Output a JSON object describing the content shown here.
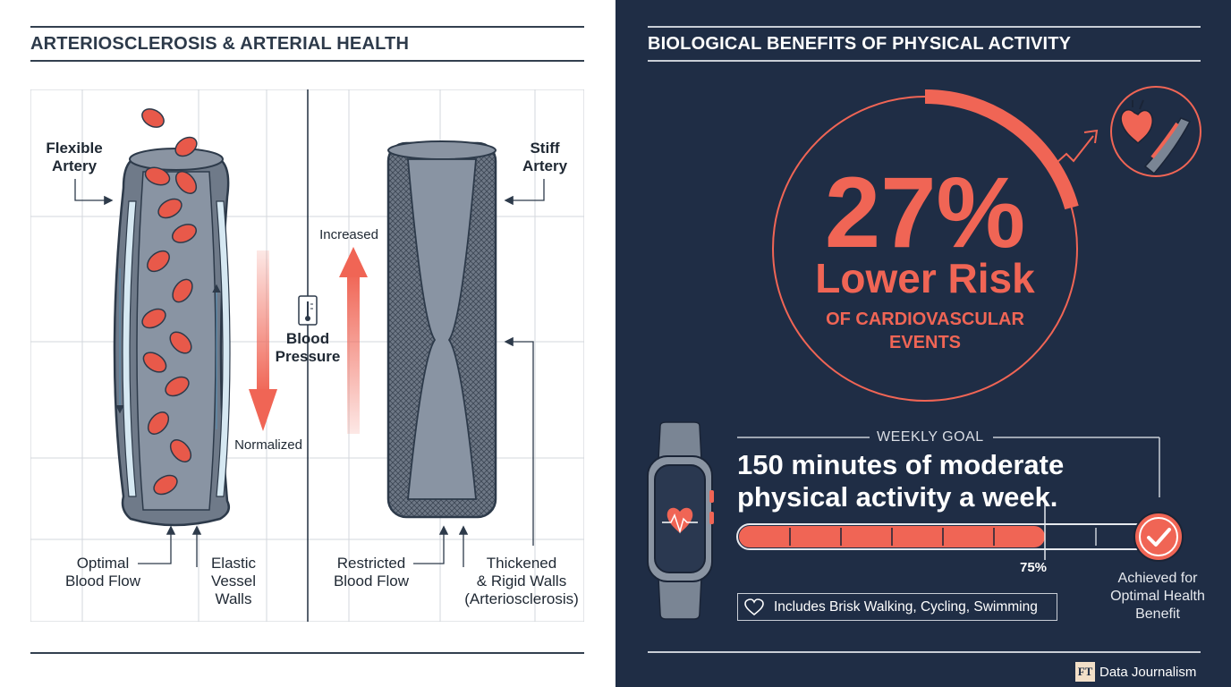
{
  "left": {
    "title": "ARTERIOSCLEROSIS & ARTERIAL HEALTH",
    "flexible_label": [
      "Flexible",
      "Artery"
    ],
    "stiff_label": [
      "Stiff",
      "Artery"
    ],
    "blood_pressure_label": [
      "Blood",
      "Pressure"
    ],
    "increased_label": "Increased",
    "normalized_label": "Normalized",
    "optimal_flow_label": [
      "Optimal",
      "Blood Flow"
    ],
    "elastic_walls_label": [
      "Elastic",
      "Vessel",
      "Walls"
    ],
    "restricted_flow_label": [
      "Restricted",
      "Blood Flow"
    ],
    "thickened_walls_label": [
      "Thickened",
      "& Rigid Walls",
      "(Arteriosclerosis)"
    ]
  },
  "right": {
    "title": "BIOLOGICAL BENEFITS OF PHYSICAL ACTIVITY",
    "risk_percent": "27%",
    "risk_text": "Lower Risk",
    "risk_subtext": [
      "OF CARDIOVASCULAR",
      "EVENTS"
    ],
    "goal_label": "WEEKLY GOAL",
    "goal_text": [
      "150 minutes of moderate",
      "physical activity a week."
    ],
    "progress_fraction": 0.75,
    "progress_label": "75%",
    "achieved_text": [
      "Achieved for",
      "Optimal Health",
      "Benefit"
    ],
    "includes_text": "Includes Brisk Walking, Cycling, Swimming",
    "footer_logo": "FT",
    "footer_text": "Data Journalism"
  },
  "colors": {
    "accent": "#f06555",
    "navy": "#1f2d45",
    "artery_gray": "#7a8594",
    "dark": "#2d3a4a"
  },
  "icons": [
    "thermometer-icon",
    "heart-icon",
    "heart-rate-icon",
    "check-icon",
    "heart-outline-icon",
    "trend-arrow-icon",
    "smartwatch-icon"
  ]
}
